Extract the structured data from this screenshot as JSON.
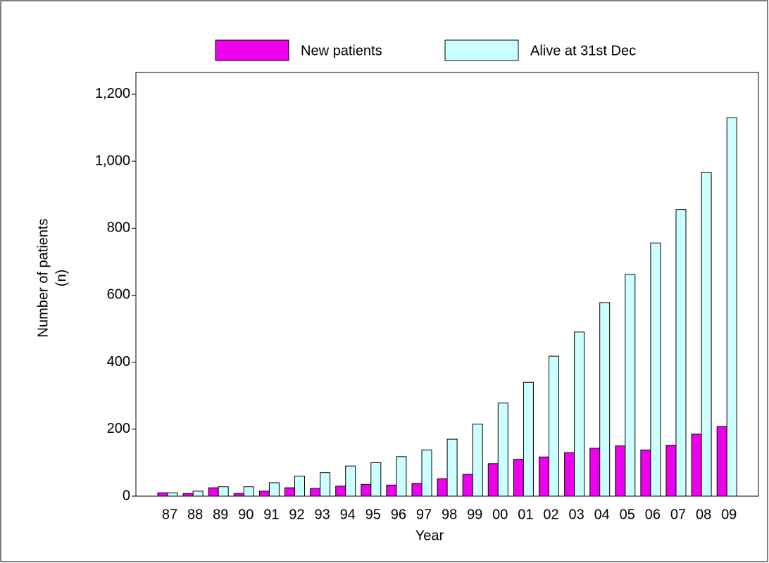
{
  "chart_data": {
    "type": "bar",
    "ylabel": [
      "Number of patients",
      "(n)"
    ],
    "xlabel": "Year",
    "categories": [
      "87",
      "88",
      "89",
      "90",
      "91",
      "92",
      "93",
      "94",
      "95",
      "96",
      "97",
      "98",
      "99",
      "00",
      "01",
      "02",
      "03",
      "04",
      "05",
      "06",
      "07",
      "08",
      "09"
    ],
    "series": [
      {
        "name": "New patients",
        "color": "#ee00ee",
        "values": [
          10,
          8,
          25,
          8,
          15,
          25,
          23,
          30,
          35,
          33,
          38,
          52,
          65,
          97,
          110,
          117,
          130,
          143,
          150,
          138,
          152,
          185,
          208
        ]
      },
      {
        "name": "Alive at 31st Dec",
        "color": "#ccffff",
        "values": [
          10,
          15,
          28,
          28,
          40,
          60,
          70,
          90,
          100,
          118,
          138,
          170,
          215,
          278,
          340,
          418,
          490,
          578,
          662,
          756,
          856,
          966,
          1130
        ]
      }
    ],
    "ylim": [
      0,
      1265
    ],
    "yticks": [
      0,
      200,
      400,
      600,
      800,
      {
        "value": 1000,
        "label": "1,000"
      },
      {
        "value": 1200,
        "label": "1,200"
      }
    ],
    "legend": "top"
  }
}
